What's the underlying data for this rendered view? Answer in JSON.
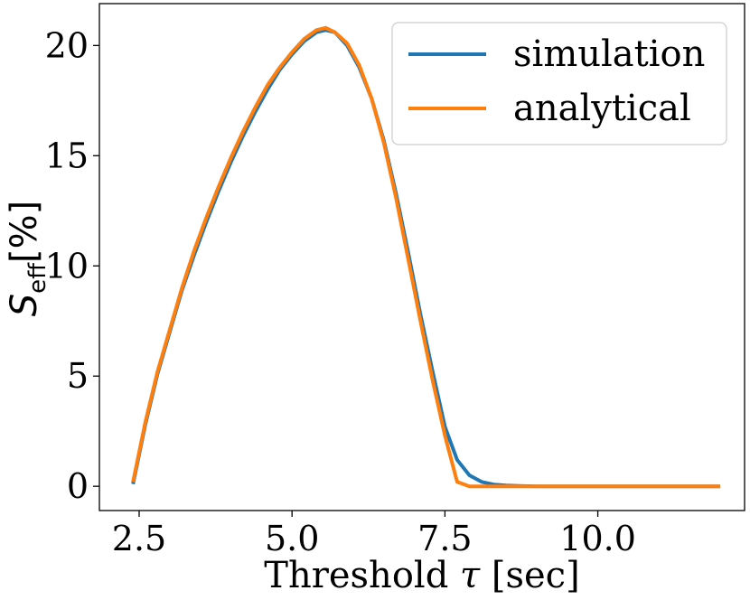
{
  "chart_data": {
    "type": "line",
    "xlabel_parts": [
      "Threshold ",
      "τ",
      " [sec]"
    ],
    "ylabel_parts": [
      "S",
      "eff",
      "[%]"
    ],
    "xlim": [
      1.85,
      12.4
    ],
    "ylim": [
      -1.1,
      21.9
    ],
    "x_ticks": [
      2.5,
      5.0,
      7.5,
      10.0
    ],
    "x_tick_labels": [
      "2.5",
      "5.0",
      "7.5",
      "10.0"
    ],
    "y_ticks": [
      0,
      5,
      10,
      15,
      20
    ],
    "y_tick_labels": [
      "0",
      "5",
      "10",
      "15",
      "20"
    ],
    "grid": false,
    "legend_position": "top-right",
    "series": [
      {
        "name": "simulation",
        "color": "#1f77b4",
        "x": [
          2.4,
          2.6,
          2.8,
          3.0,
          3.2,
          3.4,
          3.6,
          3.8,
          4.0,
          4.2,
          4.4,
          4.6,
          4.8,
          5.0,
          5.2,
          5.4,
          5.55,
          5.7,
          5.9,
          6.1,
          6.3,
          6.5,
          6.7,
          6.9,
          7.1,
          7.3,
          7.5,
          7.7,
          7.9,
          8.1,
          8.3,
          8.5,
          8.7,
          9.0,
          9.5,
          10.0,
          11.0,
          12.0
        ],
        "y": [
          0.1,
          2.8,
          5.1,
          7.0,
          8.9,
          10.5,
          12.0,
          13.4,
          14.7,
          15.9,
          17.0,
          18.0,
          18.9,
          19.6,
          20.2,
          20.6,
          20.7,
          20.6,
          20.0,
          19.0,
          17.6,
          15.7,
          13.3,
          10.6,
          7.8,
          5.2,
          2.7,
          1.2,
          0.5,
          0.2,
          0.08,
          0.04,
          0.02,
          0.0,
          0.0,
          0.0,
          0.0,
          0.0
        ]
      },
      {
        "name": "analytical",
        "color": "#ff7f0e",
        "x": [
          2.4,
          2.6,
          2.8,
          3.0,
          3.2,
          3.4,
          3.6,
          3.8,
          4.0,
          4.2,
          4.4,
          4.6,
          4.8,
          5.0,
          5.2,
          5.4,
          5.55,
          5.7,
          5.9,
          6.1,
          6.3,
          6.5,
          6.7,
          6.9,
          7.1,
          7.3,
          7.5,
          7.7,
          7.9,
          8.1,
          8.3,
          8.5,
          9.0,
          10.0,
          11.0,
          12.0
        ],
        "y": [
          0.2,
          2.9,
          5.2,
          7.1,
          9.0,
          10.7,
          12.2,
          13.6,
          14.9,
          16.1,
          17.2,
          18.2,
          19.0,
          19.7,
          20.3,
          20.7,
          20.8,
          20.6,
          20.1,
          19.1,
          17.6,
          15.6,
          13.1,
          10.3,
          7.5,
          4.8,
          2.3,
          0.2,
          0.0,
          0.0,
          0.0,
          0.0,
          0.0,
          0.0,
          0.0,
          0.0
        ]
      }
    ]
  }
}
